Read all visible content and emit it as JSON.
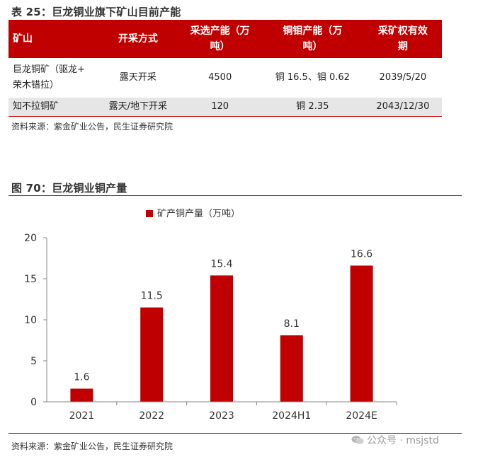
{
  "table": {
    "title": "表 25：巨龙铜业旗下矿山目前产能",
    "headers": [
      "矿山",
      "开采方式",
      "采选产能（万吨）",
      "铜钼产能（万吨）",
      "采矿权有效期"
    ],
    "headers_split": [
      [
        "矿山"
      ],
      [
        "开采方式"
      ],
      [
        "采选产能（万",
        "吨）"
      ],
      [
        "铜钼产能（万",
        "吨）"
      ],
      [
        "采矿权有效",
        "期"
      ]
    ],
    "rows": [
      {
        "mine": [
          "巨龙铜矿（驱龙+",
          "荣木错拉）"
        ],
        "method": "露天开采",
        "capacity": "4500",
        "cu_mo": "铜 16.5、钼 0.62",
        "expiry": "2039/5/20"
      },
      {
        "mine": [
          "知不拉铜矿"
        ],
        "method": "露天/地下开采",
        "capacity": "120",
        "cu_mo": "铜 2.35",
        "expiry": "2043/12/30"
      }
    ],
    "source": "资料来源：紫金矿业公告，民生证券研究院"
  },
  "figure": {
    "title": "图 70：巨龙铜业铜产量",
    "source": "资料来源：紫金矿业公告，民生证券研究院"
  },
  "watermark": {
    "text": "公众号 · msjstd",
    "icon": "wechat-icon"
  },
  "colors": {
    "accent": "#c00000",
    "row_alt": "#e6e6e6"
  },
  "chart_data": {
    "type": "bar",
    "categories": [
      "2021",
      "2022",
      "2023",
      "2024H1",
      "2024E"
    ],
    "series": [
      {
        "name": "矿产铜产量（万吨）",
        "values": [
          1.6,
          11.5,
          15.4,
          8.1,
          16.6
        ],
        "color": "#c00000"
      }
    ],
    "data_labels": [
      "1.6",
      "11.5",
      "15.4",
      "8.1",
      "16.6"
    ],
    "ylim": [
      0,
      20
    ],
    "yticks": [
      0,
      5,
      10,
      15,
      20
    ],
    "grid": false,
    "legend": "top-center"
  }
}
